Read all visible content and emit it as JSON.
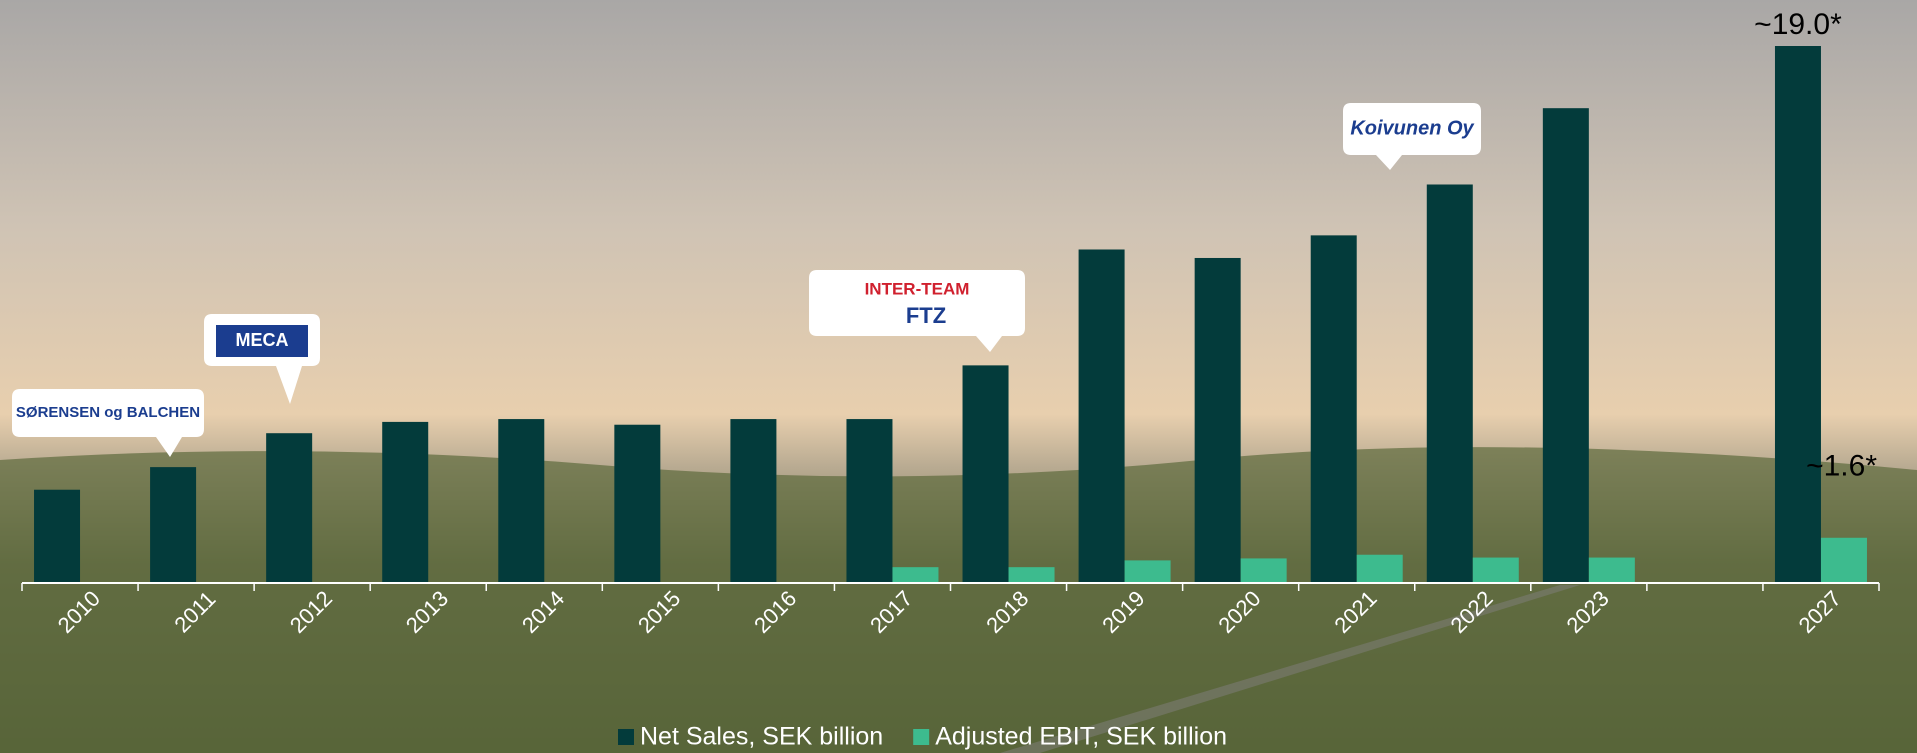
{
  "chart_data": {
    "type": "bar",
    "categories": [
      "2010",
      "2011",
      "2012",
      "2013",
      "2014",
      "2015",
      "2016",
      "2017",
      "2018",
      "2019",
      "2020",
      "2021",
      "2022",
      "2023",
      null,
      "2027"
    ],
    "series": [
      {
        "name": "Net Sales, SEK billion",
        "color": "#033b3b",
        "values": [
          3.3,
          4.1,
          5.3,
          5.7,
          5.8,
          5.6,
          5.8,
          5.8,
          7.7,
          11.8,
          11.5,
          12.3,
          14.1,
          16.8,
          null,
          19.0
        ],
        "value_labels": [
          null,
          null,
          null,
          null,
          null,
          null,
          null,
          null,
          null,
          null,
          null,
          null,
          null,
          null,
          null,
          "~19.0*"
        ]
      },
      {
        "name": "Adjusted EBIT, SEK billion",
        "color": "#3dbb8e",
        "values": [
          null,
          null,
          null,
          null,
          null,
          null,
          null,
          0.56,
          0.56,
          0.8,
          0.87,
          1.0,
          0.9,
          0.9,
          null,
          1.6
        ],
        "value_labels": [
          null,
          null,
          null,
          null,
          null,
          null,
          null,
          null,
          null,
          null,
          null,
          null,
          null,
          null,
          null,
          "~1.6*"
        ]
      }
    ],
    "annotations": [
      "SØRENSEN og BALCHEN",
      "MECA",
      "INTER-TEAM",
      "FTZ",
      "Koivunen Oy"
    ]
  }
}
